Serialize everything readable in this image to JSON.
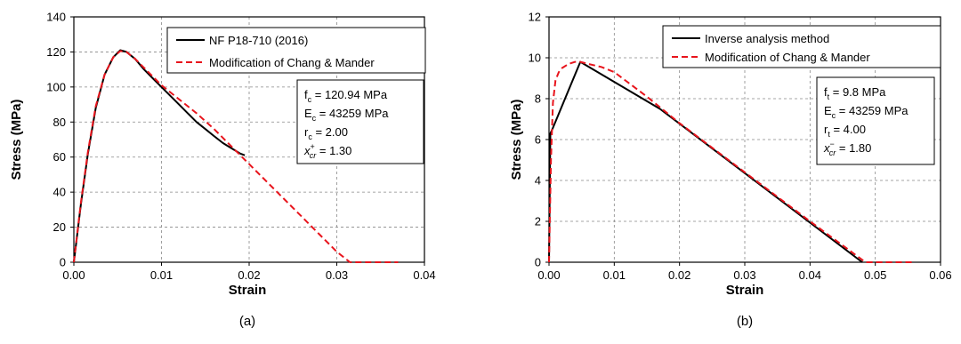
{
  "chart_data": [
    {
      "type": "line",
      "caption": "(a)",
      "xlabel": "Strain",
      "ylabel": "Stress (MPa)",
      "xlim": [
        0,
        0.04
      ],
      "ylim": [
        0,
        140
      ],
      "x_ticks": [
        "0.00",
        "0.01",
        "0.02",
        "0.03",
        "0.04"
      ],
      "y_ticks": [
        "0",
        "20",
        "40",
        "60",
        "80",
        "100",
        "120",
        "140"
      ],
      "grid": true,
      "legend_position": "top-right",
      "series": [
        {
          "name": "NF P18-710 (2016)",
          "color": "#000000",
          "style": "solid",
          "x": [
            0,
            0.0008,
            0.0016,
            0.0025,
            0.0035,
            0.0045,
            0.0053,
            0.006,
            0.007,
            0.008,
            0.009,
            0.01,
            0.011,
            0.012,
            0.013,
            0.014,
            0.015,
            0.016,
            0.017,
            0.018,
            0.019,
            0.0195
          ],
          "y": [
            0,
            33,
            62,
            88,
            107,
            117,
            121,
            120,
            116,
            110,
            105,
            100,
            95,
            90,
            85,
            80,
            76,
            72,
            68,
            65,
            62,
            61
          ]
        },
        {
          "name": "Modification of Chang & Mander",
          "color": "#e8141c",
          "style": "dashed",
          "x": [
            0,
            0.0008,
            0.0016,
            0.0025,
            0.0035,
            0.0045,
            0.0053,
            0.006,
            0.007,
            0.008,
            0.009,
            0.01,
            0.012,
            0.014,
            0.016,
            0.018,
            0.02,
            0.022,
            0.024,
            0.026,
            0.028,
            0.03,
            0.0315,
            0.032,
            0.037
          ],
          "y": [
            0,
            34,
            63,
            89,
            107,
            117,
            120.5,
            120,
            116,
            111,
            106,
            101,
            93,
            85,
            76,
            66,
            56,
            46,
            36,
            26,
            16,
            6,
            0,
            0,
            0
          ]
        }
      ],
      "annotation": {
        "lines": [
          {
            "sym": "f",
            "sub": "c",
            "text": " = 120.94 MPa"
          },
          {
            "sym": "E",
            "sub": "c",
            "text": " = 43259 MPa"
          },
          {
            "sym": "r",
            "sub": "c",
            "text": " = 2.00"
          },
          {
            "sym": "x",
            "sub": "cr",
            "sup": "+",
            "text": " = 1.30"
          }
        ]
      }
    },
    {
      "type": "line",
      "caption": "(b)",
      "xlabel": "Strain",
      "ylabel": "Stress (MPa)",
      "xlim": [
        0,
        0.06
      ],
      "ylim": [
        0,
        12
      ],
      "x_ticks": [
        "0.00",
        "0.01",
        "0.02",
        "0.03",
        "0.04",
        "0.05",
        "0.06"
      ],
      "y_ticks": [
        "0",
        "2",
        "4",
        "6",
        "8",
        "10",
        "12"
      ],
      "grid": true,
      "legend_position": "top-right",
      "series": [
        {
          "name": "Inverse analysis method",
          "color": "#000000",
          "style": "solid",
          "x": [
            0,
            0.0002,
            0.0005,
            0.0048,
            0.017,
            0.048
          ],
          "y": [
            0,
            6.3,
            6.5,
            9.8,
            7.5,
            0
          ]
        },
        {
          "name": "Modification of Chang & Mander",
          "color": "#e8141c",
          "style": "dashed",
          "x": [
            0,
            0.0003,
            0.0006,
            0.001,
            0.0015,
            0.002,
            0.003,
            0.004,
            0.0048,
            0.006,
            0.008,
            0.01,
            0.015,
            0.02,
            0.03,
            0.04,
            0.0485,
            0.049,
            0.056
          ],
          "y": [
            0,
            5.0,
            7.8,
            8.9,
            9.3,
            9.5,
            9.7,
            9.8,
            9.8,
            9.7,
            9.55,
            9.3,
            8.1,
            6.8,
            4.4,
            2.0,
            0,
            0,
            0
          ]
        }
      ],
      "annotation": {
        "lines": [
          {
            "sym": "f",
            "sub": "t",
            "text": " = 9.8 MPa"
          },
          {
            "sym": "E",
            "sub": "c",
            "text": " = 43259 MPa"
          },
          {
            "sym": "r",
            "sub": "t",
            "text": " = 4.00"
          },
          {
            "sym": "x",
            "sub": "cr",
            "sup": "−",
            "text": " = 1.80"
          }
        ]
      }
    }
  ]
}
